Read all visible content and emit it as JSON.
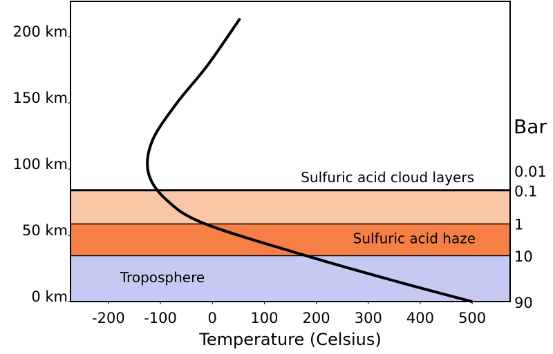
{
  "chart_data": {
    "type": "line",
    "x_label": "Temperature (Celsius)",
    "y2_label": "Bar",
    "xlim": [
      -273,
      573
    ],
    "ylim": [
      0,
      226.6
    ],
    "xticks": [
      -200,
      -100,
      0,
      100,
      200,
      300,
      400,
      500
    ],
    "yticks": [
      {
        "value": 0,
        "label": "0 km"
      },
      {
        "value": 50,
        "label": "50 km"
      },
      {
        "value": 100,
        "label": "100 km"
      },
      {
        "value": 150,
        "label": "150 km"
      },
      {
        "value": 200,
        "label": "200 km"
      }
    ],
    "layers": [
      {
        "name": "Troposphere",
        "bottom": 0,
        "top": 35,
        "color": "#c6caf2"
      },
      {
        "name": "Sulfuric acid haze",
        "bottom": 35,
        "top": 59,
        "color": "#f57f45"
      },
      {
        "name": "Sulfuric acid cloud layers",
        "bottom": 59,
        "top": 84,
        "color": "#f9c6a6"
      }
    ],
    "pressure_levels": [
      {
        "pressure": 90,
        "altitude": 0
      },
      {
        "pressure": 10,
        "altitude": 35
      },
      {
        "pressure": 1,
        "altitude": 59
      },
      {
        "pressure": 0.1,
        "altitude": 84
      },
      {
        "pressure": 0.01,
        "altitude": 99
      }
    ],
    "series": [
      {
        "name": "Temperature",
        "color": "#000000",
        "x": [
          499,
          356,
          177,
          -16,
          -89,
          -123,
          -116,
          -70,
          -10,
          52
        ],
        "values": [
          0,
          15,
          35,
          59,
          77,
          97,
          121,
          149,
          178,
          213
        ]
      }
    ]
  }
}
